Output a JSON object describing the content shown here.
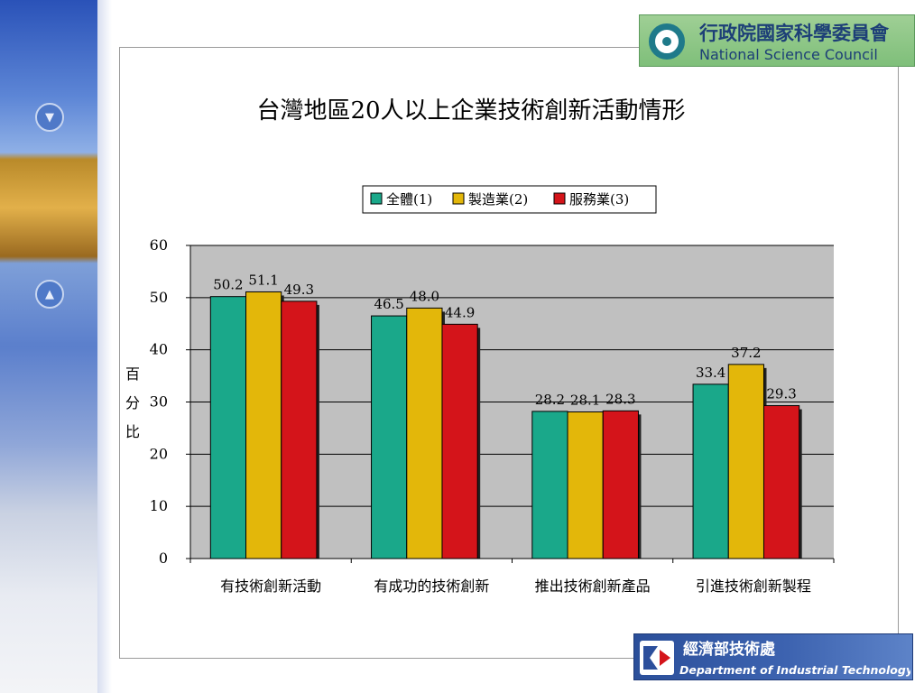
{
  "logos": {
    "nsc_chinese": "行政院國家科學委員會",
    "nsc_english": "National Science Council",
    "dit_chinese": "經濟部技術處",
    "dit_english": "Department of Industrial Technology"
  },
  "chart_data": {
    "type": "bar",
    "title": "台灣地區20人以上企業技術創新活動情形",
    "ylabel": "百分比",
    "ylabel_chars": [
      "百",
      "分",
      "比"
    ],
    "xlabel": "",
    "ylim": [
      0,
      60
    ],
    "yticks": [
      0,
      10,
      20,
      30,
      40,
      50,
      60
    ],
    "grid": true,
    "legend_position": "top-center",
    "categories": [
      "有技術創新活動",
      "有成功的技術創新",
      "推出技術創新產品",
      "引進技術創新製程"
    ],
    "series": [
      {
        "name": "全體(1)",
        "color": "#1aa88a",
        "values": [
          50.2,
          46.5,
          28.2,
          33.4
        ],
        "labels": [
          "50.2",
          "46.5",
          "28.2",
          "33.4"
        ]
      },
      {
        "name": "製造業(2)",
        "color": "#e3b70a",
        "values": [
          51.1,
          48.0,
          28.1,
          37.2
        ],
        "labels": [
          "51.1",
          "48.0",
          "28.1",
          "37.2"
        ]
      },
      {
        "name": "服務業(3)",
        "color": "#d4141a",
        "values": [
          49.3,
          44.9,
          28.3,
          29.3
        ],
        "labels": [
          "49.3",
          "44.9",
          "28.3",
          "29.3"
        ]
      }
    ]
  }
}
